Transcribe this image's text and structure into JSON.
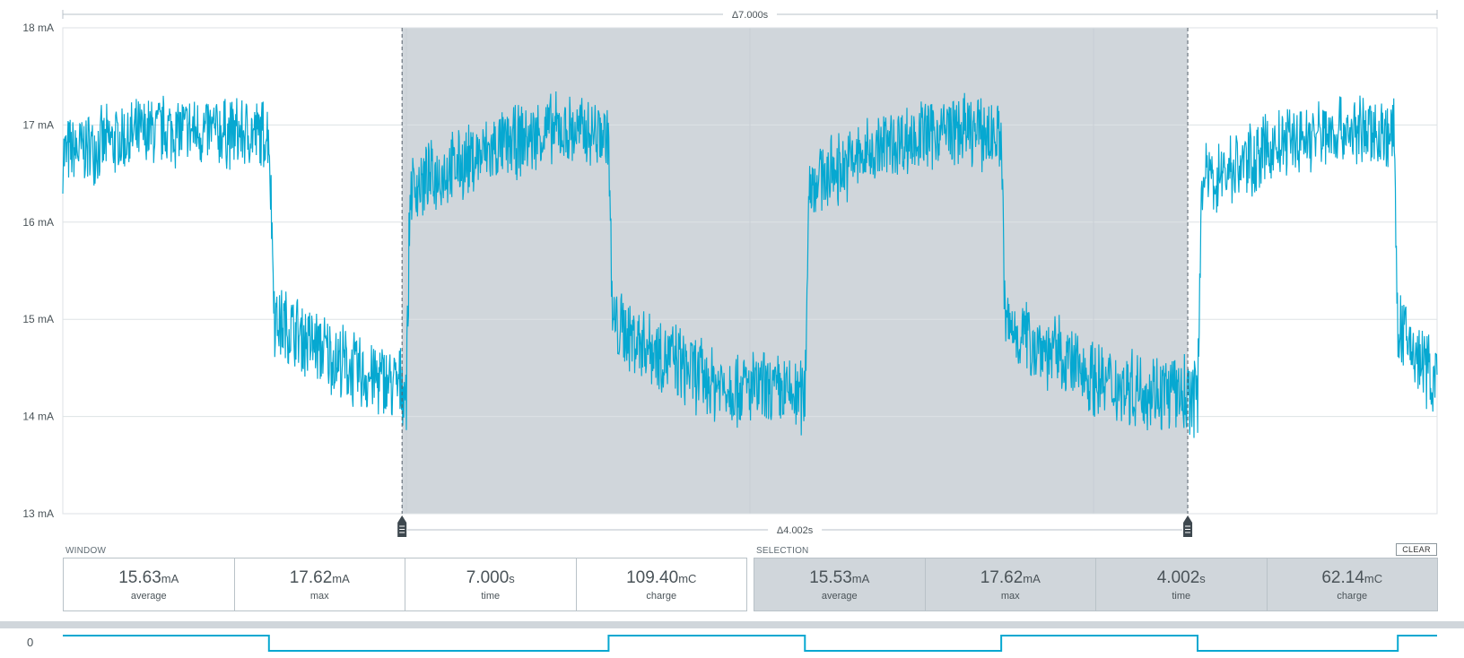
{
  "chart_data": {
    "type": "line",
    "series": [
      {
        "x": [
          0,
          0.5,
          1.05,
          1.08,
          1.5,
          1.75,
          1.77,
          2.2,
          2.5,
          2.78,
          2.8,
          3.3,
          3.78,
          3.8,
          4.2,
          4.5,
          4.78,
          4.8,
          5.3,
          5.78,
          5.8,
          6.2,
          6.5,
          6.78,
          6.8,
          7.0
        ],
        "y": [
          16.7,
          16.95,
          16.9,
          15.0,
          14.45,
          14.3,
          16.35,
          16.75,
          16.95,
          16.9,
          14.95,
          14.35,
          14.2,
          16.4,
          16.8,
          16.95,
          16.9,
          14.95,
          14.35,
          14.2,
          16.4,
          16.8,
          16.95,
          16.9,
          14.9,
          14.35
        ]
      }
    ],
    "ylim": [
      13,
      18
    ],
    "xlim": [
      0,
      7.0
    ],
    "y_ticks": [
      "18 mA",
      "17 mA",
      "16 mA",
      "15 mA",
      "14 mA",
      "13 mA"
    ],
    "y_tick_values": [
      18,
      17,
      16,
      15,
      14,
      13
    ],
    "line_color": "#06a8d1",
    "selection": {
      "start": 1.728,
      "end": 5.73
    },
    "window_delta": "Δ7.000s",
    "selection_delta": "Δ4.002s"
  },
  "window": {
    "label": "WINDOW",
    "stats": [
      {
        "value": "15.63",
        "unit": "mA",
        "caption": "average"
      },
      {
        "value": "17.62",
        "unit": "mA",
        "caption": "max"
      },
      {
        "value": "7.000",
        "unit": "s",
        "caption": "time"
      },
      {
        "value": "109.40",
        "unit": "mC",
        "caption": "charge"
      }
    ]
  },
  "selection": {
    "label": "SELECTION",
    "clear_label": "CLEAR",
    "stats": [
      {
        "value": "15.53",
        "unit": "mA",
        "caption": "average"
      },
      {
        "value": "17.62",
        "unit": "mA",
        "caption": "max"
      },
      {
        "value": "4.002",
        "unit": "s",
        "caption": "time"
      },
      {
        "value": "62.14",
        "unit": "mC",
        "caption": "charge"
      }
    ]
  },
  "digital": {
    "channel_label": "0",
    "high_levels": [
      1,
      0,
      1,
      0,
      1,
      0,
      1,
      0
    ],
    "edges": [
      0,
      1.05,
      2.78,
      3.78,
      4.78,
      5.78,
      6.8,
      7.0
    ]
  },
  "colors": {
    "trace": "#06a8d1",
    "selection_fill": "#d0d6db",
    "grid": "#dde2e5"
  }
}
